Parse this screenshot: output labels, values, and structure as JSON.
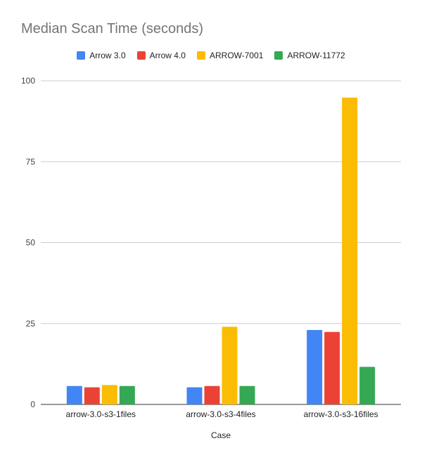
{
  "chart_data": {
    "type": "bar",
    "title": "Median Scan Time (seconds)",
    "xlabel": "Case",
    "ylabel": "",
    "categories": [
      "arrow-3.0-s3-1files",
      "arrow-3.0-s3-4files",
      "arrow-3.0-s3-16files"
    ],
    "series": [
      {
        "name": "Arrow 3.0",
        "color": "#4285f4",
        "values": [
          5.7,
          5.3,
          23.0
        ]
      },
      {
        "name": "Arrow 4.0",
        "color": "#ea4335",
        "values": [
          5.3,
          5.7,
          22.4
        ]
      },
      {
        "name": "ARROW-7001",
        "color": "#fbbc04",
        "values": [
          6.0,
          24.0,
          94.8
        ]
      },
      {
        "name": "ARROW-11772",
        "color": "#34a853",
        "values": [
          5.7,
          5.7,
          11.6
        ]
      }
    ],
    "ylim": [
      0,
      100
    ],
    "yticks": [
      0,
      25,
      50,
      75,
      100
    ],
    "grid": true,
    "legend": "top"
  }
}
